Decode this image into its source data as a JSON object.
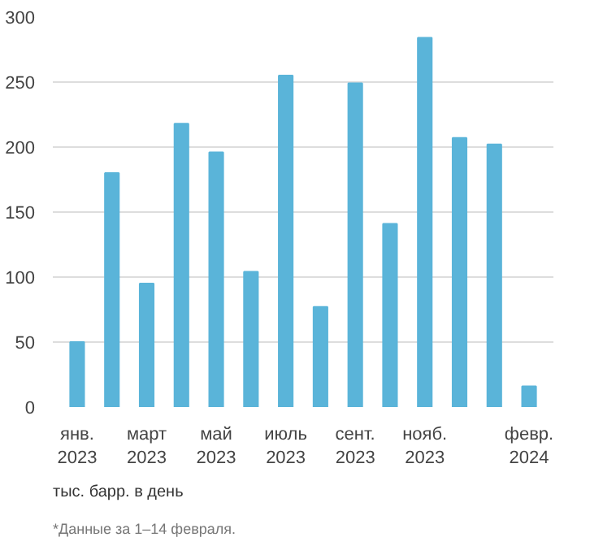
{
  "chart_data": {
    "type": "bar",
    "categories": [
      "янв.\n2023",
      null,
      "март\n2023",
      null,
      "май\n2023",
      null,
      "июль\n2023",
      null,
      "сент.\n2023",
      null,
      "нояб.\n2023",
      null,
      null,
      "февр.\n2024"
    ],
    "values": [
      50,
      180,
      95,
      218,
      196,
      104,
      255,
      77,
      249,
      141,
      284,
      207,
      202,
      16
    ],
    "color": "#5ab4d9",
    "ylim": [
      0,
      300
    ],
    "yticks": [
      0,
      50,
      100,
      150,
      200,
      250,
      300
    ],
    "grid": "y",
    "annotations": [
      "тыс. барр. в день",
      "*Данные за 1–14 февраля."
    ]
  }
}
